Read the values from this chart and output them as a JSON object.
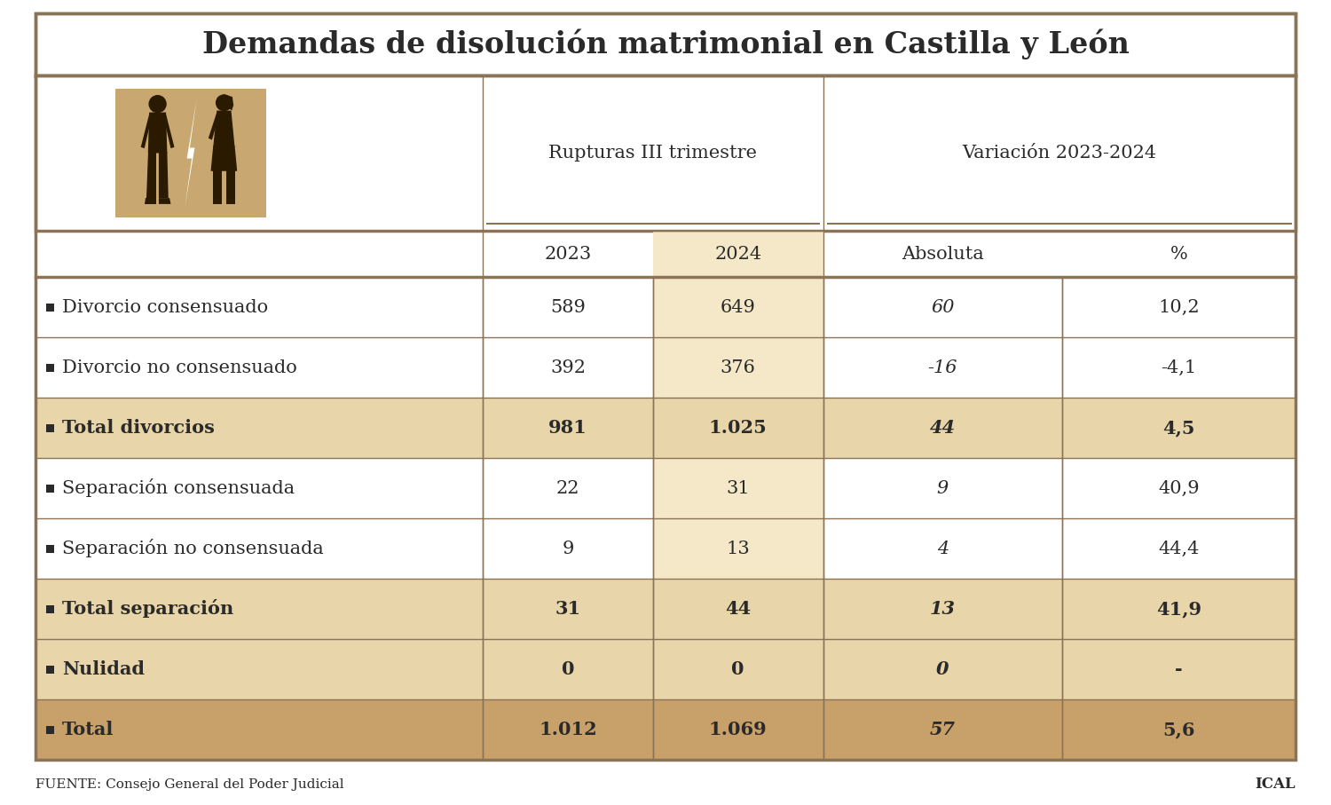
{
  "title": "Demandas de disolución matrimonial en Castilla y León",
  "title_fontsize": 24,
  "source_text": "FUENTE: Consejo General del Poder Judicial",
  "source_right": "ICAL",
  "col_headers_top": [
    "Rupturas III trimestre",
    "Variación 2023-2024"
  ],
  "col_headers_sub": [
    "2023",
    "2024",
    "Absoluta",
    "%"
  ],
  "rows": [
    {
      "label": "Divorcio consensuado",
      "bold": false,
      "vals": [
        "589",
        "649",
        "60",
        "10,2"
      ],
      "bg": "#ffffff",
      "italic_abs": true
    },
    {
      "label": "Divorcio no consensuado",
      "bold": false,
      "vals": [
        "392",
        "376",
        "-16",
        "-4,1"
      ],
      "bg": "#ffffff",
      "italic_abs": true
    },
    {
      "label": "Total divorcios",
      "bold": true,
      "vals": [
        "981",
        "1.025",
        "44",
        "4,5"
      ],
      "bg": "#e8d5aa",
      "italic_abs": true
    },
    {
      "label": "Separación consensuada",
      "bold": false,
      "vals": [
        "22",
        "31",
        "9",
        "40,9"
      ],
      "bg": "#ffffff",
      "italic_abs": true
    },
    {
      "label": "Separación no consensuada",
      "bold": false,
      "vals": [
        "9",
        "13",
        "4",
        "44,4"
      ],
      "bg": "#ffffff",
      "italic_abs": true
    },
    {
      "label": "Total separación",
      "bold": true,
      "vals": [
        "31",
        "44",
        "13",
        "41,9"
      ],
      "bg": "#e8d5aa",
      "italic_abs": true
    },
    {
      "label": "Nulidad",
      "bold": true,
      "vals": [
        "0",
        "0",
        "0",
        "-"
      ],
      "bg": "#e8d5aa",
      "italic_abs": true
    },
    {
      "label": "Total",
      "bold": true,
      "vals": [
        "1.012",
        "1.069",
        "57",
        "5,6"
      ],
      "bg": "#c8a06a",
      "italic_abs": true
    }
  ],
  "highlight_2024_col": "#f5e8c8",
  "border_color": "#8B7355",
  "text_color": "#2a2a2a",
  "bg_outer": "#ffffff",
  "square_color": "#2a2a2a",
  "img_bg": "#c8a870",
  "silhouette_color": "#2a1a00"
}
